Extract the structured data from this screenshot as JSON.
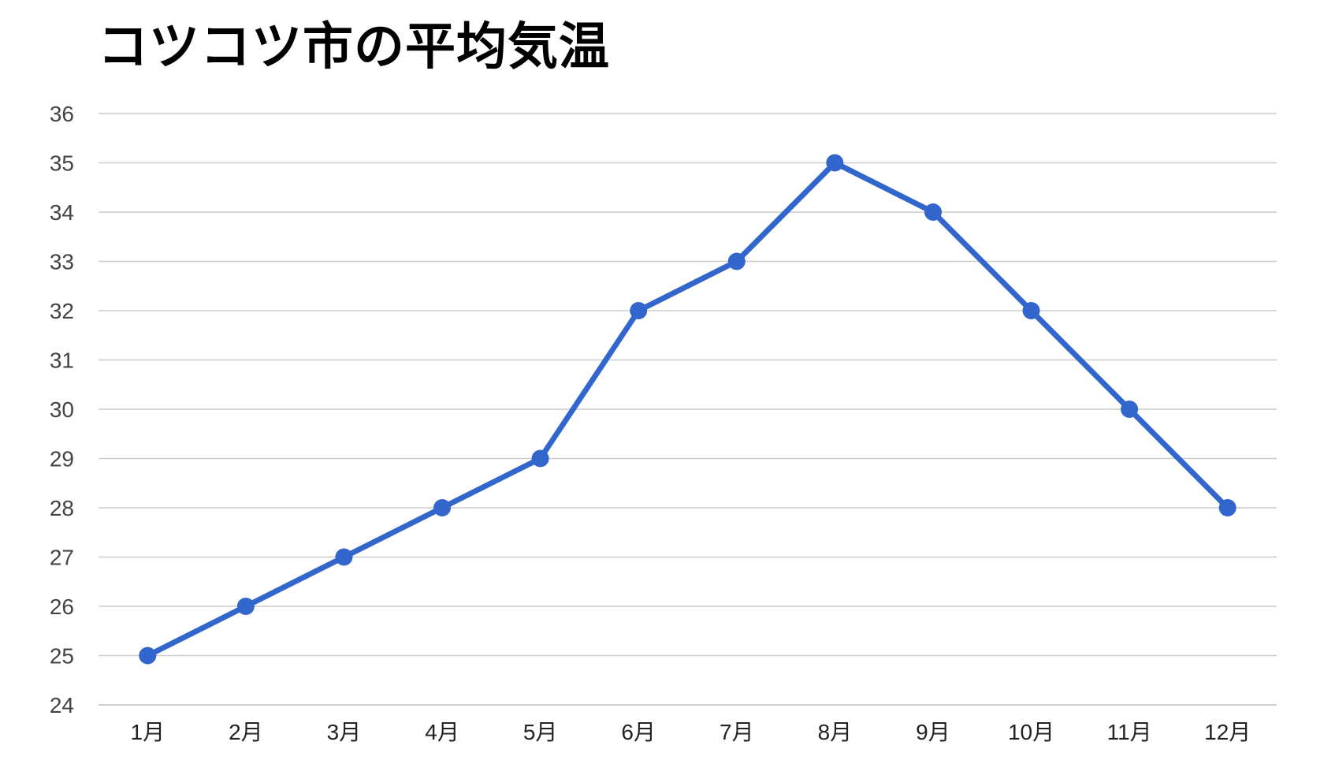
{
  "chart_data": {
    "type": "line",
    "title": "コツコツ市の平均気温",
    "xlabel": "",
    "ylabel": "",
    "categories": [
      "1月",
      "2月",
      "3月",
      "4月",
      "5月",
      "6月",
      "7月",
      "8月",
      "9月",
      "10月",
      "11月",
      "12月"
    ],
    "series": [
      {
        "values": [
          25,
          26,
          27,
          28,
          29,
          32,
          33,
          35,
          34,
          32,
          30,
          28
        ]
      }
    ],
    "ylim": [
      24,
      36
    ],
    "yticks": [
      24,
      25,
      26,
      27,
      28,
      29,
      30,
      31,
      32,
      33,
      34,
      35,
      36
    ],
    "grid": true,
    "legend": "none",
    "colors": {
      "line": "#3366cc",
      "grid": "#cccccc",
      "title": "#000000"
    }
  }
}
